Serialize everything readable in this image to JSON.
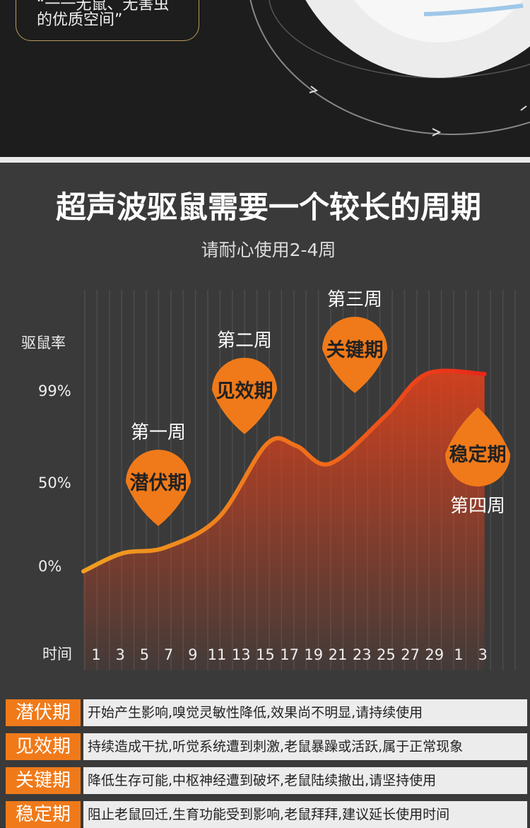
{
  "top_banner": {
    "quote_line1": "“一一无鼠、无害虫",
    "quote_line2": "的优质空间”"
  },
  "colors": {
    "accent": "#f07a1a",
    "curve_start": "#f0a020",
    "curve_end": "#e8261a",
    "background": "#3a3a3a"
  },
  "chart_data": {
    "type": "area",
    "title": "超声波驱鼠需要一个较长的周期",
    "subtitle": "请耐心使用2-4周",
    "ylabel": "驱鼠率",
    "xlabel": "时间",
    "y_ticks": [
      "99%",
      "50%",
      "0%"
    ],
    "ylim": [
      0,
      100
    ],
    "x_ticks": [
      "1",
      "3",
      "5",
      "7",
      "9",
      "11",
      "13",
      "15",
      "17",
      "19",
      "21",
      "23",
      "25",
      "27",
      "29",
      "1",
      "3"
    ],
    "points": [
      {
        "x": 0,
        "y": 0
      },
      {
        "x": 1.6,
        "y": 9
      },
      {
        "x": 3.4,
        "y": 12
      },
      {
        "x": 5.6,
        "y": 27
      },
      {
        "x": 7.6,
        "y": 64
      },
      {
        "x": 8.8,
        "y": 63
      },
      {
        "x": 10.2,
        "y": 54
      },
      {
        "x": 12.5,
        "y": 78
      },
      {
        "x": 14.2,
        "y": 99
      },
      {
        "x": 16.6,
        "y": 99
      }
    ],
    "annotations": [
      {
        "label": "第一周",
        "phase": "潜伏期"
      },
      {
        "label": "第二周",
        "phase": "见效期"
      },
      {
        "label": "第三周",
        "phase": "关键期"
      },
      {
        "label": "第四周",
        "phase": "稳定期"
      }
    ]
  },
  "legend": [
    {
      "phase": "潜伏期",
      "desc": "开始产生影响,嗅觉灵敏性降低,效果尚不明显,请持续使用"
    },
    {
      "phase": "见效期",
      "desc": "持续造成干扰,听觉系统遭到刺激,老鼠暴躁或活跃,属于正常现象"
    },
    {
      "phase": "关键期",
      "desc": "降低生存可能,中枢神经遭到破坏,老鼠陆续撤出,请坚持使用"
    },
    {
      "phase": "稳定期",
      "desc": "阻止老鼠回迁,生育功能受到影响,老鼠拜拜,建议延长使用时间"
    }
  ]
}
